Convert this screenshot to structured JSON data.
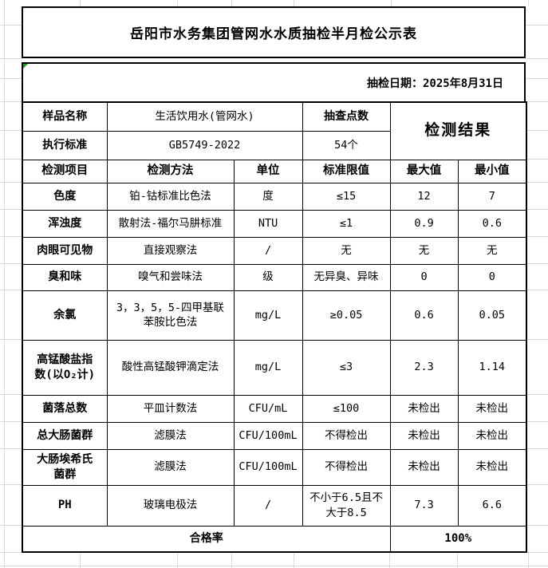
{
  "title": "岳阳市水务集团管网水水质抽检半月检公示表",
  "date_line": "抽检日期：2025年8月31日",
  "info": {
    "sample_name_label": "样品名称",
    "sample_name_value": "生活饮用水(管网水)",
    "points_label": "抽查点数",
    "points_value": "54个",
    "standard_label": "执行标准",
    "standard_value": "GB5749-2022",
    "result_header": "检测结果"
  },
  "columns": {
    "item": "检测项目",
    "method": "检测方法",
    "unit": "单位",
    "limit": "标准限值",
    "max": "最大值",
    "min": "最小值"
  },
  "rows": [
    {
      "item": "色度",
      "method": "铂-钴标准比色法",
      "unit": "度",
      "limit": "≤15",
      "max": "12",
      "min": "7"
    },
    {
      "item": "浑浊度",
      "method": "散射法-福尔马肼标准",
      "unit": "NTU",
      "limit": "≤1",
      "max": "0.9",
      "min": "0.6"
    },
    {
      "item": "肉眼可见物",
      "method": "直接观察法",
      "unit": "/",
      "limit": "无",
      "max": "无",
      "min": "无"
    },
    {
      "item": "臭和味",
      "method": "嗅气和尝味法",
      "unit": "级",
      "limit": "无异臭、异味",
      "max": "0",
      "min": "0"
    },
    {
      "item": "余氯",
      "method": "3，3，5，5-四甲基联\n苯胺比色法",
      "unit": "mg/L",
      "limit": "≥0.05",
      "max": "0.6",
      "min": "0.05"
    },
    {
      "item": "高锰酸盐指\n数(以O₂计)",
      "method": "酸性高锰酸钾滴定法",
      "unit": "mg/L",
      "limit": "≤3",
      "max": "2.3",
      "min": "1.14"
    },
    {
      "item": "菌落总数",
      "method": "平皿计数法",
      "unit": "CFU/mL",
      "limit": "≤100",
      "max": "未检出",
      "min": "未检出"
    },
    {
      "item": "总大肠菌群",
      "method": "滤膜法",
      "unit": "CFU/100mL",
      "limit": "不得检出",
      "max": "未检出",
      "min": "未检出"
    },
    {
      "item": "大肠埃希氏\n菌群",
      "method": "滤膜法",
      "unit": "CFU/100mL",
      "limit": "不得检出",
      "max": "未检出",
      "min": "未检出"
    },
    {
      "item": "PH",
      "method": "玻璃电极法",
      "unit": "/",
      "limit": "不小于6.5且不\n大于8.5",
      "max": "7.3",
      "min": "6.6"
    }
  ],
  "footer": {
    "label": "合格率",
    "value": "100%"
  },
  "colors": {
    "gridline": "#d9d9d9",
    "border": "#000000",
    "error_indicator_green": "#17a017"
  }
}
